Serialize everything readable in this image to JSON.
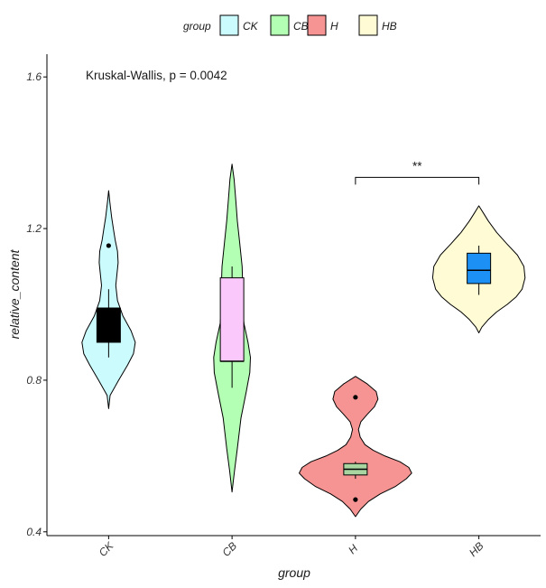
{
  "chart_data": {
    "type": "violin",
    "xlabel": "group",
    "ylabel": "relative_content",
    "categories": [
      "CK",
      "CB",
      "H",
      "HB"
    ],
    "y_ticks": [
      "0.4",
      "0.8",
      "1.2",
      "1.6"
    ],
    "ylim": [
      0.39,
      1.66
    ],
    "grid": false,
    "legend": {
      "title": "group",
      "position": "top",
      "entries": [
        {
          "label": "CK",
          "color": "#ccfbfe"
        },
        {
          "label": "CB",
          "color": "#b3ffb3"
        },
        {
          "label": "H",
          "color": "#f59493"
        },
        {
          "label": "HB",
          "color": "#fffcd5"
        }
      ]
    },
    "annotation": "Kruskal-Wallis, p = 0.0042",
    "comparisons": [
      {
        "groups": [
          "H",
          "HB"
        ],
        "label": "**",
        "y": 1.335
      }
    ],
    "groups": [
      {
        "name": "CK",
        "violin_color": "#ccfbfe",
        "y_min": 0.725,
        "y_max": 1.3,
        "profile": [
          [
            0.725,
            0.0
          ],
          [
            0.76,
            0.025
          ],
          [
            0.8,
            0.17
          ],
          [
            0.84,
            0.32
          ],
          [
            0.87,
            0.42
          ],
          [
            0.9,
            0.45
          ],
          [
            0.93,
            0.38
          ],
          [
            0.97,
            0.24
          ],
          [
            1.01,
            0.15
          ],
          [
            1.05,
            0.12
          ],
          [
            1.08,
            0.14
          ],
          [
            1.11,
            0.16
          ],
          [
            1.14,
            0.15
          ],
          [
            1.17,
            0.11
          ],
          [
            1.2,
            0.08
          ],
          [
            1.23,
            0.05
          ],
          [
            1.27,
            0.02
          ],
          [
            1.3,
            0.0
          ]
        ],
        "box": {
          "q1": 0.9,
          "median": 0.99,
          "q3": 0.99,
          "whisker_low": 0.86,
          "whisker_high": 1.04
        },
        "box_color": "#000000",
        "outliers": [
          1.155
        ]
      },
      {
        "name": "CB",
        "violin_color": "#b3ffb3",
        "y_min": 0.505,
        "y_max": 1.37,
        "profile": [
          [
            0.505,
            0.0
          ],
          [
            0.56,
            0.04
          ],
          [
            0.62,
            0.09
          ],
          [
            0.7,
            0.15
          ],
          [
            0.77,
            0.24
          ],
          [
            0.82,
            0.3
          ],
          [
            0.86,
            0.31
          ],
          [
            0.9,
            0.27
          ],
          [
            0.95,
            0.2
          ],
          [
            1.0,
            0.17
          ],
          [
            1.05,
            0.18
          ],
          [
            1.1,
            0.17
          ],
          [
            1.16,
            0.13
          ],
          [
            1.22,
            0.09
          ],
          [
            1.28,
            0.06
          ],
          [
            1.33,
            0.035
          ],
          [
            1.37,
            0.0
          ]
        ],
        "box": {
          "q1": 0.85,
          "median": 0.85,
          "q3": 1.07,
          "whisker_low": 0.78,
          "whisker_high": 1.1
        },
        "box_color": "#fbc8fb",
        "outliers": []
      },
      {
        "name": "H",
        "violin_color": "#f59493",
        "y_min": 0.44,
        "y_max": 0.81,
        "profile": [
          [
            0.44,
            0.0
          ],
          [
            0.46,
            0.09
          ],
          [
            0.48,
            0.22
          ],
          [
            0.5,
            0.42
          ],
          [
            0.52,
            0.68
          ],
          [
            0.54,
            0.86
          ],
          [
            0.555,
            0.95
          ],
          [
            0.57,
            0.9
          ],
          [
            0.585,
            0.75
          ],
          [
            0.6,
            0.5
          ],
          [
            0.615,
            0.3
          ],
          [
            0.63,
            0.16
          ],
          [
            0.65,
            0.08
          ],
          [
            0.67,
            0.05
          ],
          [
            0.69,
            0.09
          ],
          [
            0.71,
            0.2
          ],
          [
            0.73,
            0.32
          ],
          [
            0.75,
            0.38
          ],
          [
            0.77,
            0.35
          ],
          [
            0.79,
            0.2
          ],
          [
            0.81,
            0.0
          ]
        ],
        "box": {
          "q1": 0.55,
          "median": 0.565,
          "q3": 0.58,
          "whisker_low": 0.54,
          "whisker_high": 0.585
        },
        "box_color": "#a8d5a0",
        "outliers": [
          0.485,
          0.755
        ]
      },
      {
        "name": "HB",
        "violin_color": "#fffcd5",
        "y_min": 0.925,
        "y_max": 1.26,
        "profile": [
          [
            0.925,
            0.0
          ],
          [
            0.94,
            0.05
          ],
          [
            0.96,
            0.16
          ],
          [
            0.98,
            0.3
          ],
          [
            1.0,
            0.48
          ],
          [
            1.02,
            0.63
          ],
          [
            1.04,
            0.73
          ],
          [
            1.07,
            0.78
          ],
          [
            1.1,
            0.76
          ],
          [
            1.13,
            0.65
          ],
          [
            1.16,
            0.47
          ],
          [
            1.19,
            0.3
          ],
          [
            1.22,
            0.16
          ],
          [
            1.24,
            0.08
          ],
          [
            1.26,
            0.0
          ]
        ],
        "box": {
          "q1": 1.055,
          "median": 1.09,
          "q3": 1.135,
          "whisker_low": 1.025,
          "whisker_high": 1.155
        },
        "box_color": "#1c90f5",
        "outliers": []
      }
    ]
  }
}
